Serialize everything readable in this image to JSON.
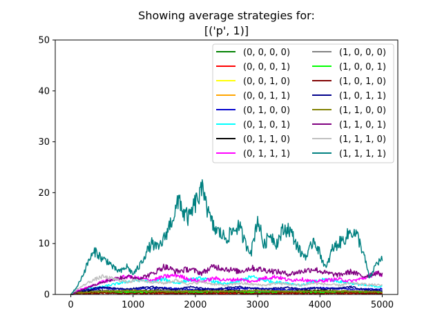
{
  "chart_data": {
    "type": "line",
    "title": [
      "Showing average strategies for:",
      "[('p', 1)]"
    ],
    "xlabel": "",
    "ylabel": "",
    "xlim": [
      -250,
      5250
    ],
    "ylim": [
      0,
      50
    ],
    "xticks": [
      0,
      1000,
      2000,
      3000,
      4000,
      5000
    ],
    "yticks": [
      0,
      10,
      20,
      30,
      40,
      50
    ],
    "grid": false,
    "legend_position": "top-right",
    "legend_columns": 2,
    "series": [
      {
        "name": "(0, 0, 0, 0)",
        "color": "#008000",
        "x": [
          0,
          100,
          500,
          1000,
          1500,
          2000,
          2500,
          3000,
          3500,
          4000,
          4500,
          5000
        ],
        "values": [
          0,
          0.3,
          0.6,
          0.5,
          0.4,
          0.5,
          0.4,
          0.5,
          0.4,
          0.5,
          0.4,
          0.4
        ]
      },
      {
        "name": "(0, 0, 0, 1)",
        "color": "#ff0000",
        "x": [
          0,
          100,
          500,
          1000,
          1500,
          2000,
          2500,
          3000,
          3500,
          4000,
          4500,
          5000
        ],
        "values": [
          0,
          0.2,
          0.3,
          0.3,
          0.2,
          0.3,
          0.2,
          0.3,
          0.2,
          0.3,
          0.2,
          0.2
        ]
      },
      {
        "name": "(0, 0, 1, 0)",
        "color": "#ffff00",
        "x": [
          0,
          100,
          500,
          1000,
          1500,
          2000,
          2500,
          3000,
          3500,
          4000,
          4500,
          5000
        ],
        "values": [
          0,
          0.3,
          0.5,
          0.6,
          0.4,
          0.5,
          0.6,
          0.4,
          0.5,
          0.4,
          0.5,
          0.4
        ]
      },
      {
        "name": "(0, 0, 1, 1)",
        "color": "#ffa500",
        "x": [
          0,
          100,
          500,
          1000,
          1500,
          2000,
          2500,
          3000,
          3500,
          4000,
          4500,
          5000
        ],
        "values": [
          0,
          0.2,
          0.4,
          0.3,
          0.4,
          0.3,
          0.4,
          0.3,
          0.4,
          0.3,
          0.4,
          0.3
        ]
      },
      {
        "name": "(0, 1, 0, 0)",
        "color": "#0000cd",
        "x": [
          0,
          100,
          500,
          1000,
          1500,
          2000,
          2500,
          3000,
          3500,
          4000,
          4500,
          5000
        ],
        "values": [
          0,
          0.5,
          1.2,
          1.0,
          1.3,
          0.9,
          1.1,
          1.2,
          0.9,
          1.3,
          1.0,
          1.1
        ]
      },
      {
        "name": "(0, 1, 0, 1)",
        "color": "#00ffff",
        "x": [
          0,
          100,
          300,
          500,
          700,
          900,
          1100,
          1300,
          1500,
          1700,
          1900,
          2100,
          2300,
          2500,
          2700,
          2900,
          3100,
          3300,
          3500,
          3700,
          3900,
          4100,
          4300,
          4500,
          4700,
          5000
        ],
        "values": [
          0,
          0.5,
          1.2,
          1.5,
          2.0,
          2.5,
          2.8,
          2.5,
          3.0,
          2.2,
          2.8,
          3.2,
          2.5,
          2.0,
          2.6,
          3.5,
          2.8,
          2.4,
          2.2,
          1.8,
          2.5,
          3.0,
          2.6,
          2.2,
          1.8,
          1.5
        ]
      },
      {
        "name": "(0, 1, 1, 0)",
        "color": "#000000",
        "x": [
          0,
          100,
          500,
          1000,
          1500,
          2000,
          2500,
          3000,
          3500,
          4000,
          4500,
          5000
        ],
        "values": [
          0,
          0.4,
          0.8,
          0.6,
          0.9,
          0.7,
          0.8,
          0.6,
          0.7,
          0.8,
          0.6,
          0.7
        ]
      },
      {
        "name": "(0, 1, 1, 1)",
        "color": "#ff00ff",
        "x": [
          0,
          100,
          300,
          500,
          700,
          900,
          1100,
          1300,
          1500,
          1700,
          1900,
          2100,
          2300,
          2500,
          2700,
          2900,
          3100,
          3300,
          3500,
          3700,
          3900,
          4100,
          4300,
          4500,
          4700,
          4900,
          5000
        ],
        "values": [
          0,
          0.8,
          1.5,
          2.5,
          3.0,
          3.5,
          3.2,
          2.8,
          3.5,
          3.8,
          3.0,
          2.5,
          3.2,
          2.8,
          3.0,
          2.5,
          3.2,
          3.5,
          2.8,
          3.0,
          2.5,
          2.8,
          3.0,
          2.6,
          3.2,
          4.2,
          3.5
        ]
      },
      {
        "name": "(1, 0, 0, 0)",
        "color": "#808080",
        "x": [
          0,
          100,
          500,
          1000,
          1500,
          2000,
          2500,
          3000,
          3500,
          4000,
          4500,
          5000
        ],
        "values": [
          0,
          0.3,
          0.7,
          0.6,
          0.8,
          0.6,
          0.7,
          0.6,
          0.7,
          0.6,
          0.7,
          0.6
        ]
      },
      {
        "name": "(1, 0, 0, 1)",
        "color": "#00ff00",
        "x": [
          0,
          100,
          500,
          1000,
          1500,
          2000,
          2500,
          3000,
          3500,
          4000,
          4500,
          5000
        ],
        "values": [
          0,
          0.2,
          0.5,
          0.4,
          0.5,
          0.4,
          0.5,
          0.4,
          0.5,
          0.4,
          0.5,
          0.4
        ]
      },
      {
        "name": "(1, 0, 1, 0)",
        "color": "#800000",
        "x": [
          0,
          100,
          500,
          1000,
          1500,
          2000,
          2500,
          3000,
          3500,
          4000,
          4500,
          5000
        ],
        "values": [
          0,
          0.2,
          0.3,
          0.2,
          0.3,
          0.2,
          0.3,
          0.2,
          0.3,
          0.2,
          0.3,
          0.2
        ]
      },
      {
        "name": "(1, 0, 1, 1)",
        "color": "#00008b",
        "x": [
          0,
          100,
          300,
          500,
          700,
          900,
          1100,
          1300,
          1500,
          1700,
          1900,
          2100,
          2300,
          2500,
          2700,
          2900,
          3100,
          3300,
          3500,
          3700,
          3900,
          4100,
          4300,
          4500,
          4700,
          5000
        ],
        "values": [
          0,
          0.5,
          1.0,
          1.5,
          1.2,
          1.0,
          1.3,
          1.5,
          1.2,
          1.0,
          1.5,
          1.2,
          1.0,
          1.3,
          1.5,
          1.2,
          1.0,
          1.2,
          1.4,
          1.0,
          1.3,
          1.1,
          1.2,
          1.5,
          1.0,
          0.8
        ]
      },
      {
        "name": "(1, 1, 0, 0)",
        "color": "#808000",
        "x": [
          0,
          100,
          500,
          1000,
          1500,
          2000,
          2500,
          3000,
          3500,
          4000,
          4500,
          5000
        ],
        "values": [
          0,
          0.3,
          0.6,
          0.8,
          0.5,
          0.7,
          0.6,
          0.8,
          0.5,
          0.7,
          0.6,
          0.5
        ]
      },
      {
        "name": "(1, 1, 0, 1)",
        "color": "#800080",
        "x": [
          0,
          100,
          300,
          500,
          700,
          900,
          1100,
          1300,
          1500,
          1700,
          1900,
          2100,
          2300,
          2500,
          2700,
          2900,
          3100,
          3300,
          3500,
          3700,
          3900,
          4100,
          4300,
          4500,
          4700,
          4900,
          5000
        ],
        "values": [
          0,
          0.5,
          1.5,
          2.5,
          3.0,
          3.5,
          3.2,
          4.0,
          5.5,
          4.5,
          5.0,
          4.2,
          5.5,
          5.0,
          4.5,
          5.2,
          4.8,
          4.5,
          4.0,
          4.5,
          5.0,
          4.2,
          3.8,
          4.5,
          3.5,
          4.2,
          4.0
        ]
      },
      {
        "name": "(1, 1, 1, 0)",
        "color": "#c0c0c0",
        "x": [
          0,
          100,
          300,
          500,
          700,
          900,
          1100,
          1300,
          1500,
          1700,
          1900,
          2100,
          2300,
          2500,
          2700,
          2900,
          3100,
          3300,
          3500,
          3700,
          3900,
          4100,
          4300,
          4500,
          4700,
          5000
        ],
        "values": [
          0,
          1.0,
          2.5,
          3.5,
          3.0,
          2.5,
          2.8,
          2.5,
          2.2,
          2.8,
          2.0,
          2.5,
          2.0,
          1.8,
          2.2,
          2.0,
          1.8,
          2.2,
          2.0,
          1.8,
          2.2,
          2.0,
          1.8,
          2.2,
          2.0,
          1.8
        ]
      },
      {
        "name": "(1, 1, 1, 1)",
        "color": "#008080",
        "x": [
          0,
          100,
          200,
          300,
          400,
          500,
          600,
          700,
          800,
          900,
          1000,
          1100,
          1200,
          1300,
          1400,
          1500,
          1600,
          1700,
          1750,
          1800,
          1900,
          2000,
          2100,
          2150,
          2200,
          2300,
          2400,
          2500,
          2600,
          2700,
          2800,
          2900,
          3000,
          3100,
          3200,
          3300,
          3400,
          3500,
          3600,
          3700,
          3800,
          3900,
          4000,
          4100,
          4200,
          4300,
          4400,
          4500,
          4600,
          4700,
          4800,
          4900,
          5000
        ],
        "values": [
          0,
          1.5,
          4.0,
          7.0,
          8.5,
          7.0,
          6.5,
          5.0,
          4.5,
          5.5,
          4.0,
          5.5,
          8.0,
          10.0,
          9.0,
          11.0,
          14.0,
          17.0,
          19.0,
          16.0,
          15.0,
          18.0,
          20.0,
          21.0,
          16.0,
          13.0,
          12.0,
          11.0,
          12.5,
          13.5,
          10.0,
          8.5,
          15.0,
          9.5,
          12.0,
          10.0,
          12.5,
          13.0,
          10.5,
          8.0,
          7.5,
          11.0,
          8.0,
          5.0,
          9.0,
          10.0,
          11.0,
          12.5,
          11.5,
          8.0,
          3.0,
          6.0,
          7.0
        ]
      }
    ]
  }
}
